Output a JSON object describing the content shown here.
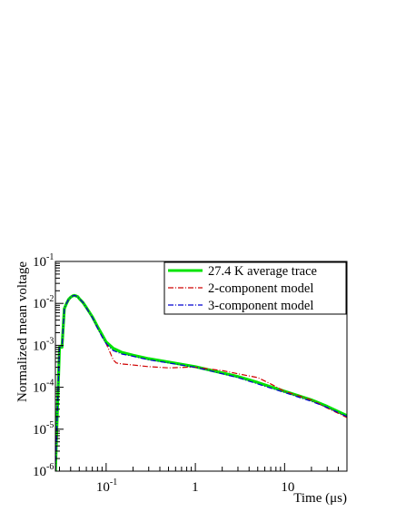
{
  "chart_data": {
    "type": "line",
    "xlabel": "Time (μs)",
    "ylabel": "Normalized mean voltage",
    "xscale": "log",
    "yscale": "log",
    "xlim": [
      0.027,
      50
    ],
    "ylim": [
      1e-06,
      0.1
    ],
    "x_tick_labels": [
      {
        "value": 0.1,
        "base": "10",
        "exp": "-1"
      },
      {
        "value": 1,
        "base": "1",
        "exp": ""
      },
      {
        "value": 10,
        "base": "10",
        "exp": ""
      }
    ],
    "y_tick_labels": [
      {
        "value": 1e-06,
        "base": "10",
        "exp": "-6"
      },
      {
        "value": 1e-05,
        "base": "10",
        "exp": "-5"
      },
      {
        "value": 0.0001,
        "base": "10",
        "exp": "-4"
      },
      {
        "value": 0.001,
        "base": "10",
        "exp": "-3"
      },
      {
        "value": 0.01,
        "base": "10",
        "exp": "-2"
      },
      {
        "value": 0.1,
        "base": "10",
        "exp": "-1"
      }
    ],
    "grid": false,
    "legend_position": "top-right",
    "series": [
      {
        "name": "27.4 K average trace",
        "color": "#00e400",
        "style": "solid",
        "x": [
          0.027,
          0.03,
          0.032,
          0.034,
          0.036,
          0.038,
          0.04,
          0.042,
          0.044,
          0.046,
          0.048,
          0.05,
          0.055,
          0.06,
          0.07,
          0.08,
          0.09,
          0.1,
          0.12,
          0.15,
          0.2,
          0.3,
          0.5,
          1,
          2,
          3,
          5,
          10,
          20,
          30,
          50
        ],
        "y": [
          1e-06,
          0.0009,
          0.0009,
          0.0075,
          0.01,
          0.0125,
          0.014,
          0.015,
          0.0155,
          0.015,
          0.0145,
          0.013,
          0.0105,
          0.008,
          0.0048,
          0.0028,
          0.0018,
          0.0012,
          0.00085,
          0.00068,
          0.00058,
          0.00048,
          0.0004,
          0.00031,
          0.00022,
          0.00018,
          0.00013,
          8e-05,
          5e-05,
          3.5e-05,
          2.1e-05
        ]
      },
      {
        "name": "2-component model",
        "color": "#d00000",
        "style": "dashdot",
        "x": [
          0.027,
          0.03,
          0.032,
          0.034,
          0.036,
          0.038,
          0.04,
          0.042,
          0.044,
          0.046,
          0.048,
          0.05,
          0.055,
          0.06,
          0.07,
          0.08,
          0.09,
          0.1,
          0.11,
          0.12,
          0.13,
          0.15,
          0.2,
          0.3,
          0.5,
          0.8,
          1,
          2,
          3,
          5,
          7,
          10,
          20,
          30,
          50
        ],
        "y": [
          1e-06,
          0.0009,
          0.0009,
          0.0075,
          0.01,
          0.0125,
          0.014,
          0.015,
          0.0155,
          0.015,
          0.0145,
          0.013,
          0.0105,
          0.0078,
          0.0046,
          0.0026,
          0.0016,
          0.0011,
          0.0007,
          0.00045,
          0.00038,
          0.00036,
          0.00034,
          0.00031,
          0.00029,
          0.0003,
          0.0003,
          0.00025,
          0.00021,
          0.00017,
          0.00012,
          8e-05,
          5e-05,
          3.2e-05,
          1.9e-05
        ]
      },
      {
        "name": "3-component model",
        "color": "#0000d0",
        "style": "dashdot",
        "x": [
          0.027,
          0.03,
          0.032,
          0.034,
          0.036,
          0.038,
          0.04,
          0.042,
          0.044,
          0.046,
          0.048,
          0.05,
          0.055,
          0.06,
          0.07,
          0.08,
          0.09,
          0.1,
          0.12,
          0.15,
          0.2,
          0.3,
          0.5,
          1,
          2,
          3,
          5,
          10,
          20,
          30,
          50
        ],
        "y": [
          1e-06,
          0.0009,
          0.0009,
          0.0075,
          0.01,
          0.0125,
          0.014,
          0.015,
          0.0155,
          0.015,
          0.0145,
          0.013,
          0.0105,
          0.0078,
          0.0046,
          0.0026,
          0.0016,
          0.0011,
          0.00075,
          0.00062,
          0.00055,
          0.00045,
          0.00038,
          0.0003,
          0.00021,
          0.00017,
          0.00012,
          7.5e-05,
          4.6e-05,
          3.3e-05,
          2e-05
        ]
      }
    ]
  }
}
